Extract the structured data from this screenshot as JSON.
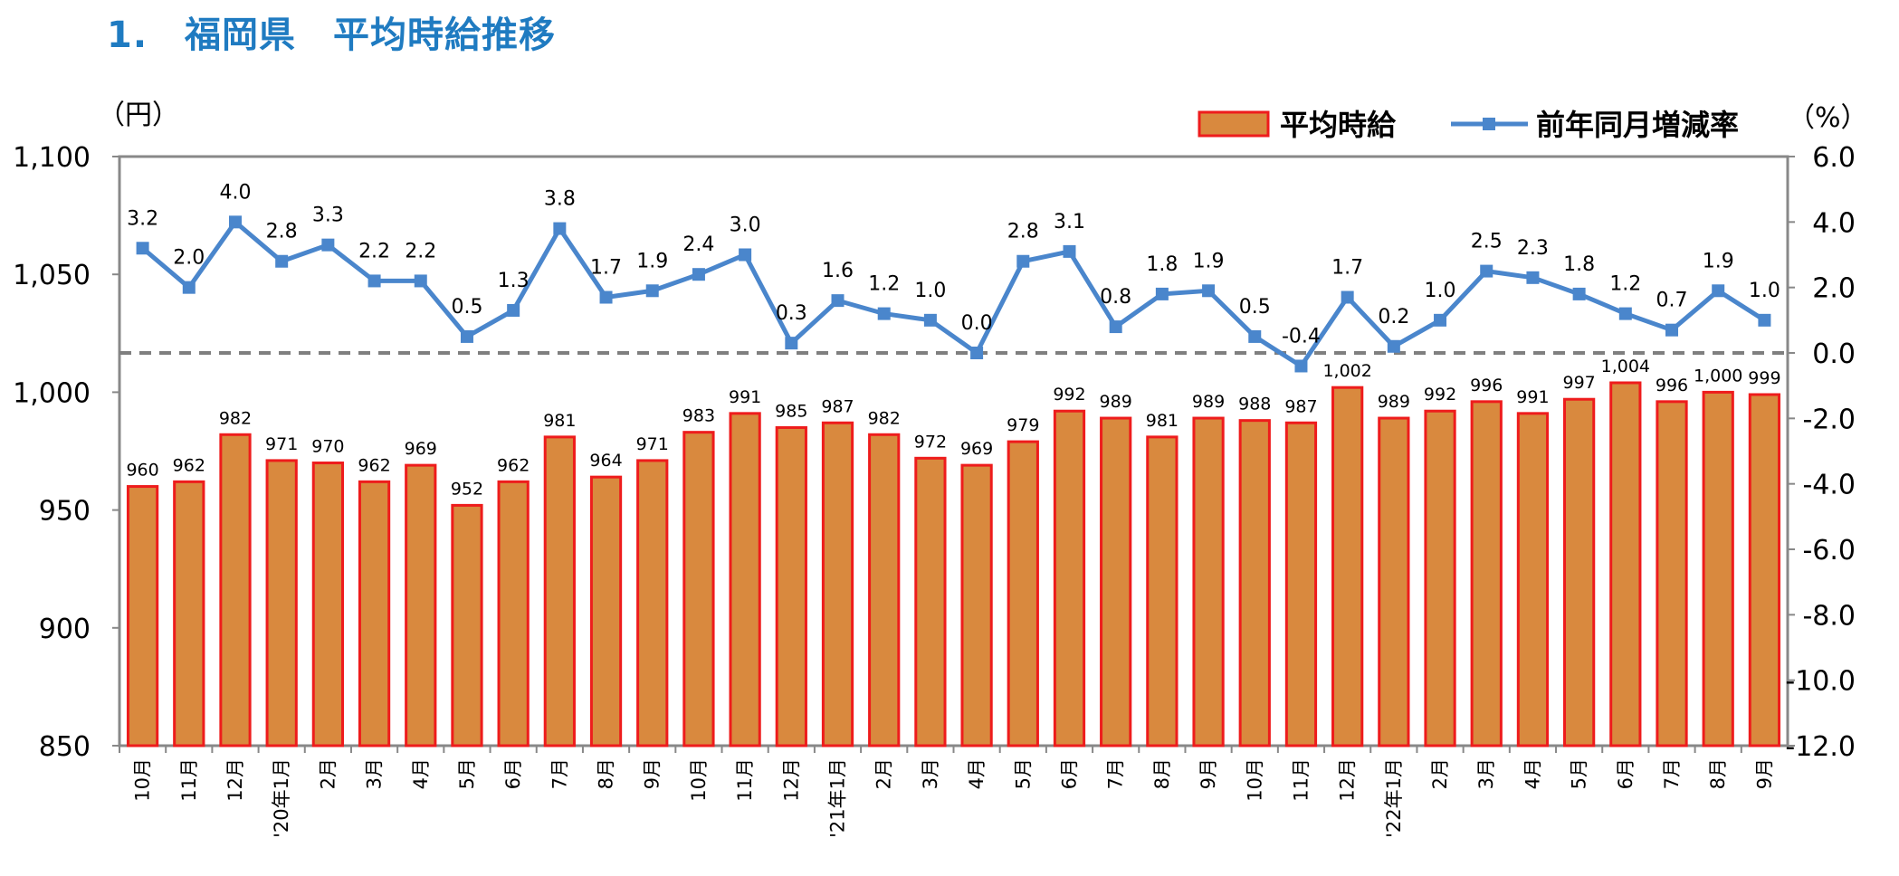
{
  "title": "1.　福岡県　平均時給推移",
  "chart_data": {
    "type": "bar+line",
    "left_axis_unit": "（円）",
    "right_axis_unit": "（%）",
    "left_ylim": [
      850,
      1100
    ],
    "left_ticks": [
      "1,100",
      "1,050",
      "1,000",
      "950",
      "900",
      "850"
    ],
    "right_ylim": [
      -12.0,
      6.0
    ],
    "right_ticks": [
      "6.0",
      "4.0",
      "2.0",
      "0.0",
      "-2.0",
      "-4.0",
      "-6.0",
      "-8.0",
      "-10.0",
      "-12.0"
    ],
    "categories": [
      "10月",
      "11月",
      "12月",
      "'20年1月",
      "2月",
      "3月",
      "4月",
      "5月",
      "6月",
      "7月",
      "8月",
      "9月",
      "10月",
      "11月",
      "12月",
      "'21年1月",
      "2月",
      "3月",
      "4月",
      "5月",
      "6月",
      "7月",
      "8月",
      "9月",
      "10月",
      "11月",
      "12月",
      "'22年1月",
      "2月",
      "3月",
      "4月",
      "5月",
      "6月",
      "7月",
      "8月",
      "9月"
    ],
    "series": [
      {
        "name": "平均時給",
        "type": "bar",
        "axis": "left",
        "color": "#d9893e",
        "border": "#ee1c1c",
        "values": [
          960,
          962,
          982,
          971,
          970,
          962,
          969,
          952,
          962,
          981,
          964,
          971,
          983,
          991,
          985,
          987,
          982,
          972,
          969,
          979,
          992,
          989,
          981,
          989,
          988,
          987,
          1002,
          989,
          992,
          996,
          991,
          997,
          1004,
          996,
          1000,
          999
        ],
        "labels": [
          "960",
          "962",
          "982",
          "971",
          "970",
          "962",
          "969",
          "952",
          "962",
          "981",
          "964",
          "971",
          "983",
          "991",
          "985",
          "987",
          "982",
          "972",
          "969",
          "979",
          "992",
          "989",
          "981",
          "989",
          "988",
          "987",
          "1,002",
          "989",
          "992",
          "996",
          "991",
          "997",
          "1,004",
          "996",
          "1,000",
          "999"
        ]
      },
      {
        "name": "前年同月増減率",
        "type": "line",
        "axis": "right",
        "color": "#4a86cc",
        "values": [
          3.2,
          2.0,
          4.0,
          2.8,
          3.3,
          2.2,
          2.2,
          0.5,
          1.3,
          3.8,
          1.7,
          1.9,
          2.4,
          3.0,
          0.3,
          1.6,
          1.2,
          1.0,
          0.0,
          2.8,
          3.1,
          0.8,
          1.8,
          1.9,
          0.5,
          -0.4,
          1.7,
          0.2,
          1.0,
          2.5,
          2.3,
          1.8,
          1.2,
          0.7,
          1.9,
          1.0
        ],
        "labels": [
          "3.2",
          "2.0",
          "4.0",
          "2.8",
          "3.3",
          "2.2",
          "2.2",
          "0.5",
          "1.3",
          "3.8",
          "1.7",
          "1.9",
          "2.4",
          "3.0",
          "0.3",
          "1.6",
          "1.2",
          "1.0",
          "0.0",
          "2.8",
          "3.1",
          "0.8",
          "1.8",
          "1.9",
          "0.5",
          "-0.4",
          "1.7",
          "0.2",
          "1.0",
          "2.5",
          "2.3",
          "1.8",
          "1.2",
          "0.7",
          "1.9",
          "1.0"
        ]
      }
    ],
    "zero_reference_line": "dashed",
    "legend_position": "top-right"
  }
}
